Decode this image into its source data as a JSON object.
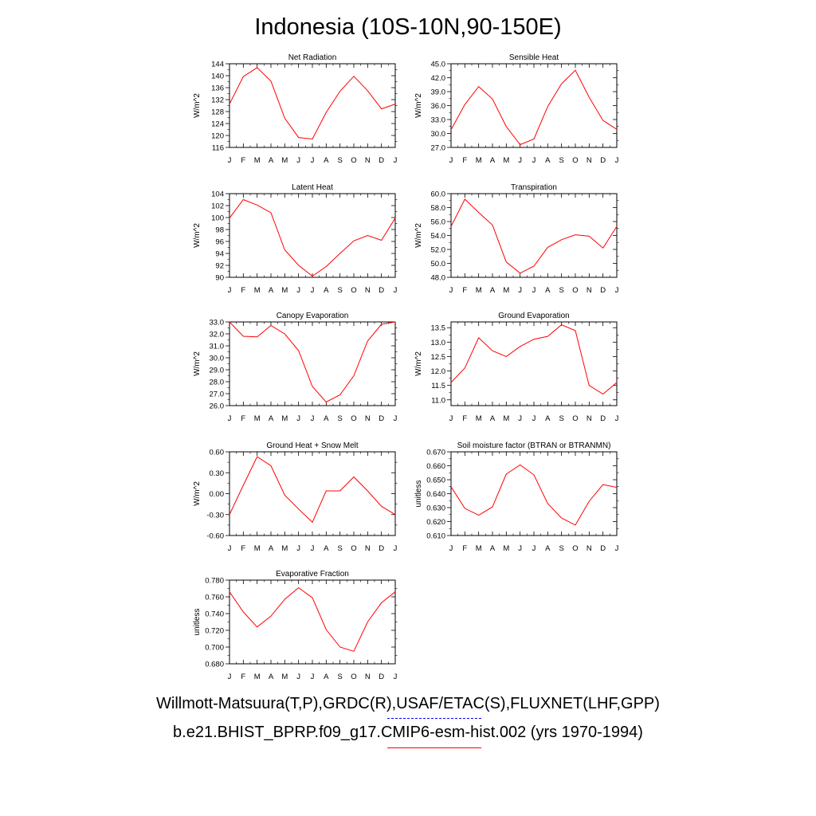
{
  "title": "Indonesia (10S-10N,90-150E)",
  "legend": {
    "observed": "Willmott-Matsuura(T,P),GRDC(R),USAF/ETAC(S),FLUXNET(LHF,GPP)",
    "observed_color": "#0000ff",
    "model": "b.e21.BHIST_BPRP.f09_g17.CMIP6-esm-hist.002 (yrs 1970-1994)",
    "model_color": "#ff0000"
  },
  "months": [
    "J",
    "F",
    "M",
    "A",
    "M",
    "J",
    "J",
    "A",
    "S",
    "O",
    "N",
    "D",
    "J"
  ],
  "chart_data": [
    {
      "type": "line",
      "title": "Net Radiation",
      "ylabel": "W/m^2",
      "ylim": [
        116,
        144
      ],
      "yticks": [
        116,
        120,
        124,
        128,
        132,
        136,
        140,
        144
      ],
      "ytick_labels": [
        "116",
        "120",
        "124",
        "128",
        "132",
        "136",
        "140",
        "144"
      ],
      "series": [
        {
          "color": "#ff0000",
          "values": [
            130.5,
            139.7,
            142.7,
            138.2,
            125.8,
            119.3,
            118.8,
            127.7,
            134.8,
            139.8,
            135.0,
            128.9,
            130.5
          ]
        }
      ]
    },
    {
      "type": "line",
      "title": "Sensible Heat",
      "ylabel": "W/m^2",
      "ylim": [
        27,
        45
      ],
      "yticks": [
        27,
        30,
        33,
        36,
        39,
        42,
        45
      ],
      "ytick_labels": [
        "27.0",
        "30.0",
        "33.0",
        "36.0",
        "39.0",
        "42.0",
        "45.0"
      ],
      "series": [
        {
          "color": "#ff0000",
          "values": [
            30.8,
            36.2,
            40.1,
            37.4,
            31.5,
            27.6,
            28.8,
            35.8,
            40.7,
            43.6,
            37.8,
            32.8,
            30.9
          ]
        }
      ]
    },
    {
      "type": "line",
      "title": "Latent Heat",
      "ylabel": "W/m^2",
      "ylim": [
        90,
        104
      ],
      "yticks": [
        90,
        92,
        94,
        96,
        98,
        100,
        102,
        104
      ],
      "ytick_labels": [
        "90",
        "92",
        "94",
        "96",
        "98",
        "100",
        "102",
        "104"
      ],
      "series": [
        {
          "color": "#ff0000",
          "values": [
            99.9,
            103.0,
            102.1,
            100.8,
            94.6,
            92.0,
            90.2,
            91.8,
            94.0,
            96.1,
            97.0,
            96.2,
            99.9
          ]
        }
      ]
    },
    {
      "type": "line",
      "title": "Transpiration",
      "ylabel": "W/m^2",
      "ylim": [
        48,
        60
      ],
      "yticks": [
        48,
        50,
        52,
        54,
        56,
        58,
        60
      ],
      "ytick_labels": [
        "48.0",
        "50.0",
        "52.0",
        "54.0",
        "56.0",
        "58.0",
        "60.0"
      ],
      "series": [
        {
          "color": "#ff0000",
          "values": [
            55.3,
            59.2,
            57.3,
            55.5,
            50.2,
            48.6,
            49.6,
            52.3,
            53.4,
            54.1,
            53.9,
            52.2,
            55.3
          ]
        }
      ]
    },
    {
      "type": "line",
      "title": "Canopy Evaporation",
      "ylabel": "W/m^2",
      "ylim": [
        26,
        33
      ],
      "yticks": [
        26,
        27,
        28,
        29,
        30,
        31,
        32,
        33
      ],
      "ytick_labels": [
        "26.0",
        "27.0",
        "28.0",
        "29.0",
        "30.0",
        "31.0",
        "32.0",
        "33.0"
      ],
      "series": [
        {
          "color": "#ff0000",
          "values": [
            33.0,
            31.8,
            31.75,
            32.7,
            32.0,
            30.6,
            27.6,
            26.3,
            26.9,
            28.5,
            31.4,
            32.8,
            33.0
          ]
        }
      ]
    },
    {
      "type": "line",
      "title": "Ground Evaporation",
      "ylabel": "W/m^2",
      "ylim": [
        10.8,
        13.7
      ],
      "yticks": [
        11.0,
        11.5,
        12.0,
        12.5,
        13.0,
        13.5
      ],
      "ytick_labels": [
        "11.0",
        "11.5",
        "12.0",
        "12.5",
        "13.0",
        "13.5"
      ],
      "series": [
        {
          "color": "#ff0000",
          "values": [
            11.6,
            12.1,
            13.15,
            12.7,
            12.5,
            12.85,
            13.1,
            13.2,
            13.6,
            13.4,
            11.5,
            11.2,
            11.6
          ]
        }
      ]
    },
    {
      "type": "line",
      "title": "Ground Heat + Snow Melt",
      "ylabel": "W/m^2",
      "ylim": [
        -0.6,
        0.6
      ],
      "yticks": [
        -0.6,
        -0.3,
        0.0,
        0.3,
        0.6
      ],
      "ytick_labels": [
        "-0.60",
        "-0.30",
        "0.00",
        "0.30",
        "0.60"
      ],
      "series": [
        {
          "color": "#ff0000",
          "values": [
            -0.3,
            0.12,
            0.53,
            0.4,
            -0.02,
            -0.22,
            -0.41,
            0.04,
            0.04,
            0.24,
            0.04,
            -0.18,
            -0.3
          ]
        }
      ]
    },
    {
      "type": "line",
      "title": "Soil moisture factor (BTRAN or BTRANMN)",
      "ylabel": "unitless",
      "ylim": [
        0.61,
        0.67
      ],
      "yticks": [
        0.61,
        0.62,
        0.63,
        0.64,
        0.65,
        0.66,
        0.67
      ],
      "ytick_labels": [
        "0.610",
        "0.620",
        "0.630",
        "0.640",
        "0.650",
        "0.660",
        "0.670"
      ],
      "series": [
        {
          "color": "#ff0000",
          "values": [
            0.645,
            0.6295,
            0.6245,
            0.6305,
            0.654,
            0.6607,
            0.6535,
            0.633,
            0.6225,
            0.6175,
            0.6345,
            0.6465,
            0.6445
          ]
        }
      ]
    },
    {
      "type": "line",
      "title": "Evaporative Fraction",
      "ylabel": "unitless",
      "ylim": [
        0.68,
        0.78
      ],
      "yticks": [
        0.68,
        0.7,
        0.72,
        0.74,
        0.76,
        0.78
      ],
      "ytick_labels": [
        "0.680",
        "0.700",
        "0.720",
        "0.740",
        "0.760",
        "0.780"
      ],
      "series": [
        {
          "color": "#ff0000",
          "values": [
            0.766,
            0.742,
            0.724,
            0.737,
            0.757,
            0.771,
            0.759,
            0.721,
            0.7,
            0.695,
            0.73,
            0.753,
            0.766
          ]
        }
      ]
    }
  ]
}
